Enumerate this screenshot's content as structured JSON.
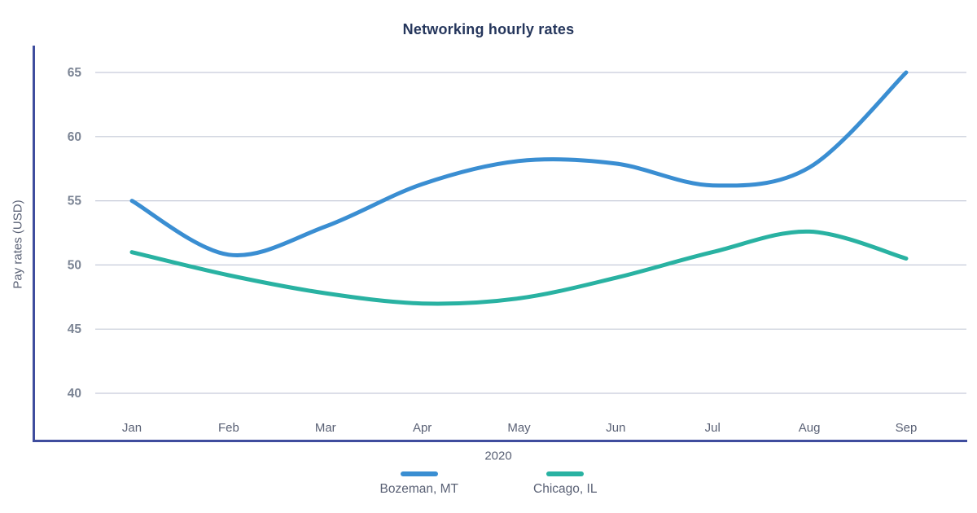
{
  "page": {
    "background": "#ffffff"
  },
  "chart_data": {
    "type": "line",
    "title": "Networking hourly rates",
    "xlabel": "2020",
    "ylabel": "Pay rates (USD)",
    "categories": [
      "Jan",
      "Feb",
      "Mar",
      "Apr",
      "May",
      "Jun",
      "Jul",
      "Aug",
      "Sep"
    ],
    "y_ticks": [
      40,
      45,
      50,
      55,
      60,
      65
    ],
    "ylim": [
      40,
      65
    ],
    "grid": true,
    "legend_position": "bottom",
    "series": [
      {
        "name": "Bozeman, MT",
        "color": "#3a8ed2",
        "values": [
          55.0,
          50.8,
          53.0,
          56.3,
          58.1,
          57.9,
          56.2,
          57.6,
          65.0
        ]
      },
      {
        "name": "Chicago, IL",
        "color": "#29b2a2",
        "values": [
          51.0,
          49.2,
          47.8,
          47.0,
          47.4,
          49.0,
          51.0,
          52.6,
          50.5
        ]
      }
    ],
    "axis_color": "#3f4d9e",
    "grid_color": "#c6cbd9",
    "tick_label_color": "#7b8494",
    "month_label_color": "#5a6175"
  }
}
